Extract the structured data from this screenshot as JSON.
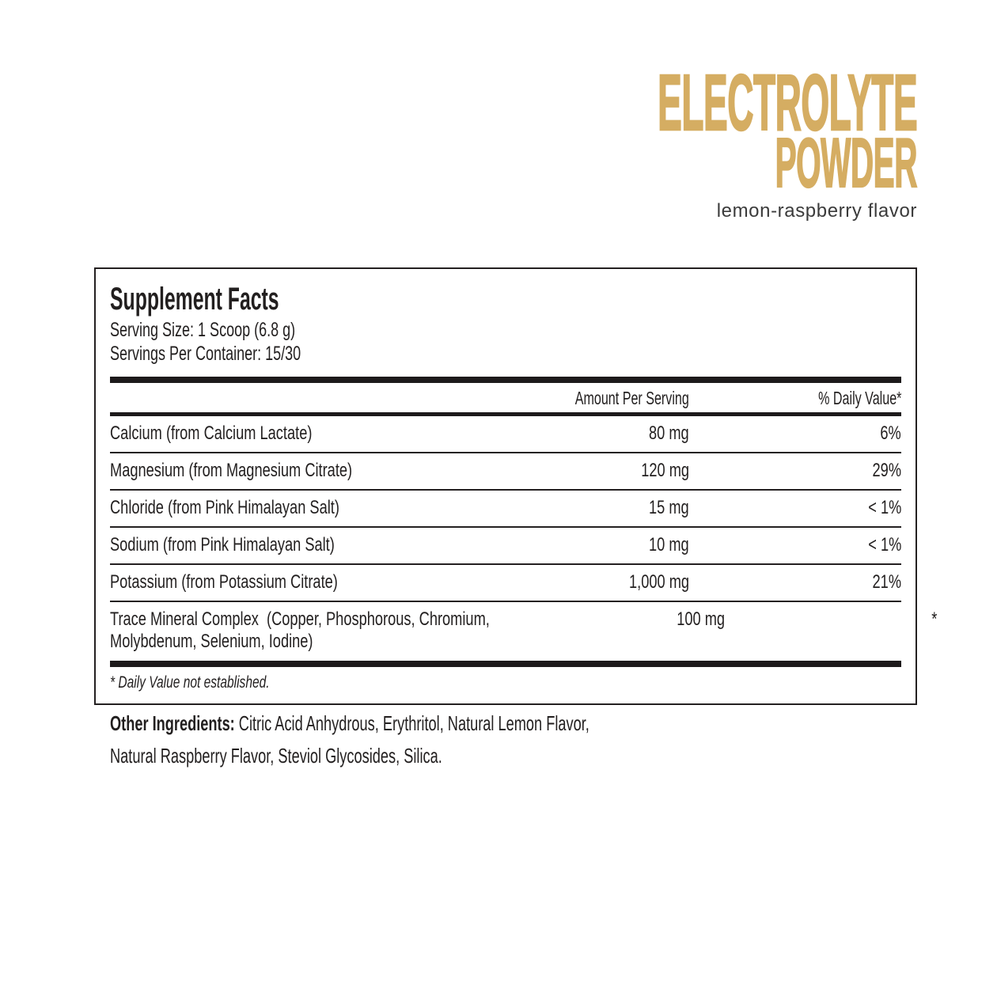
{
  "header": {
    "title_line1": "ELECTROLYTE",
    "title_line2": "POWDER",
    "flavor": "lemon-raspberry flavor",
    "accent_color": "#d5ad62",
    "ink_color": "#221f1f"
  },
  "supplement_facts": {
    "title": "Supplement Facts",
    "serving_size": "Serving Size: 1 Scoop (6.8 g)",
    "servings_per_container": "Servings Per Container: 15/30",
    "columns": {
      "amount": "Amount Per Serving",
      "daily_value": "% Daily Value*"
    },
    "rows": [
      {
        "name": "Calcium (from Calcium Lactate)",
        "amount": "80 mg",
        "daily_value": "6%"
      },
      {
        "name": "Magnesium (from Magnesium Citrate)",
        "amount": "120 mg",
        "daily_value": "29%"
      },
      {
        "name": "Chloride (from Pink Himalayan Salt)",
        "amount": "15 mg",
        "daily_value": "< 1%"
      },
      {
        "name": "Sodium (from Pink Himalayan Salt)",
        "amount": "10 mg",
        "daily_value": "< 1%"
      },
      {
        "name": "Potassium (from Potassium Citrate)",
        "amount": "1,000 mg",
        "daily_value": "21%"
      },
      {
        "name": "Trace Mineral Complex  (Copper, Phosphorous, Chromium,",
        "name_line2": "Molybdenum, Selenium, Iodine)",
        "amount": "100 mg",
        "daily_value": "*"
      }
    ],
    "footnote": "* Daily Value not established."
  },
  "other_ingredients": {
    "label": "Other Ingredients:",
    "line1": "Citric Acid Anhydrous, Erythritol, Natural Lemon Flavor,",
    "line2": "Natural Raspberry Flavor, Steviol Glycosides, Silica."
  }
}
